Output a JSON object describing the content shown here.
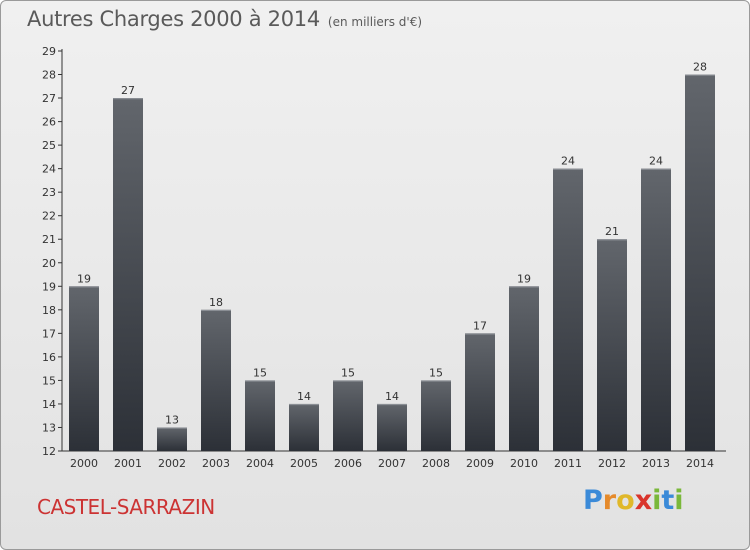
{
  "header": {
    "title": "Autres Charges 2000 à 2014",
    "subtitle": "(en milliers d'€)"
  },
  "footer": {
    "city": "CASTEL-SARRAZIN"
  },
  "brand": {
    "letters": [
      "P",
      "r",
      "o",
      "x",
      "i",
      "t",
      "i"
    ],
    "colors": [
      "#3b8ad8",
      "#e58a2b",
      "#e0b82a",
      "#d9342b",
      "#7ab83a",
      "#3b8ad8",
      "#7ab83a"
    ]
  },
  "colors": {
    "bar_top": "#62666c",
    "bar_bottom": "#2c3037",
    "axis": "#333333",
    "text": "#333333"
  },
  "chart_data": {
    "type": "bar",
    "categories": [
      "2000",
      "2001",
      "2002",
      "2003",
      "2004",
      "2005",
      "2006",
      "2007",
      "2008",
      "2009",
      "2010",
      "2011",
      "2012",
      "2013",
      "2014"
    ],
    "values": [
      19,
      27,
      13,
      18,
      15,
      14,
      15,
      14,
      15,
      17,
      19,
      24,
      21,
      24,
      28
    ],
    "data_labels": [
      "19",
      "27",
      "13",
      "18",
      "15",
      "14",
      "15",
      "14",
      "15",
      "17",
      "19",
      "24",
      "21",
      "24",
      "28"
    ],
    "ylim": [
      12,
      29
    ],
    "yticks": [
      12,
      13,
      14,
      15,
      16,
      17,
      18,
      19,
      20,
      21,
      22,
      23,
      24,
      25,
      26,
      27,
      28,
      29
    ],
    "grid": false
  }
}
